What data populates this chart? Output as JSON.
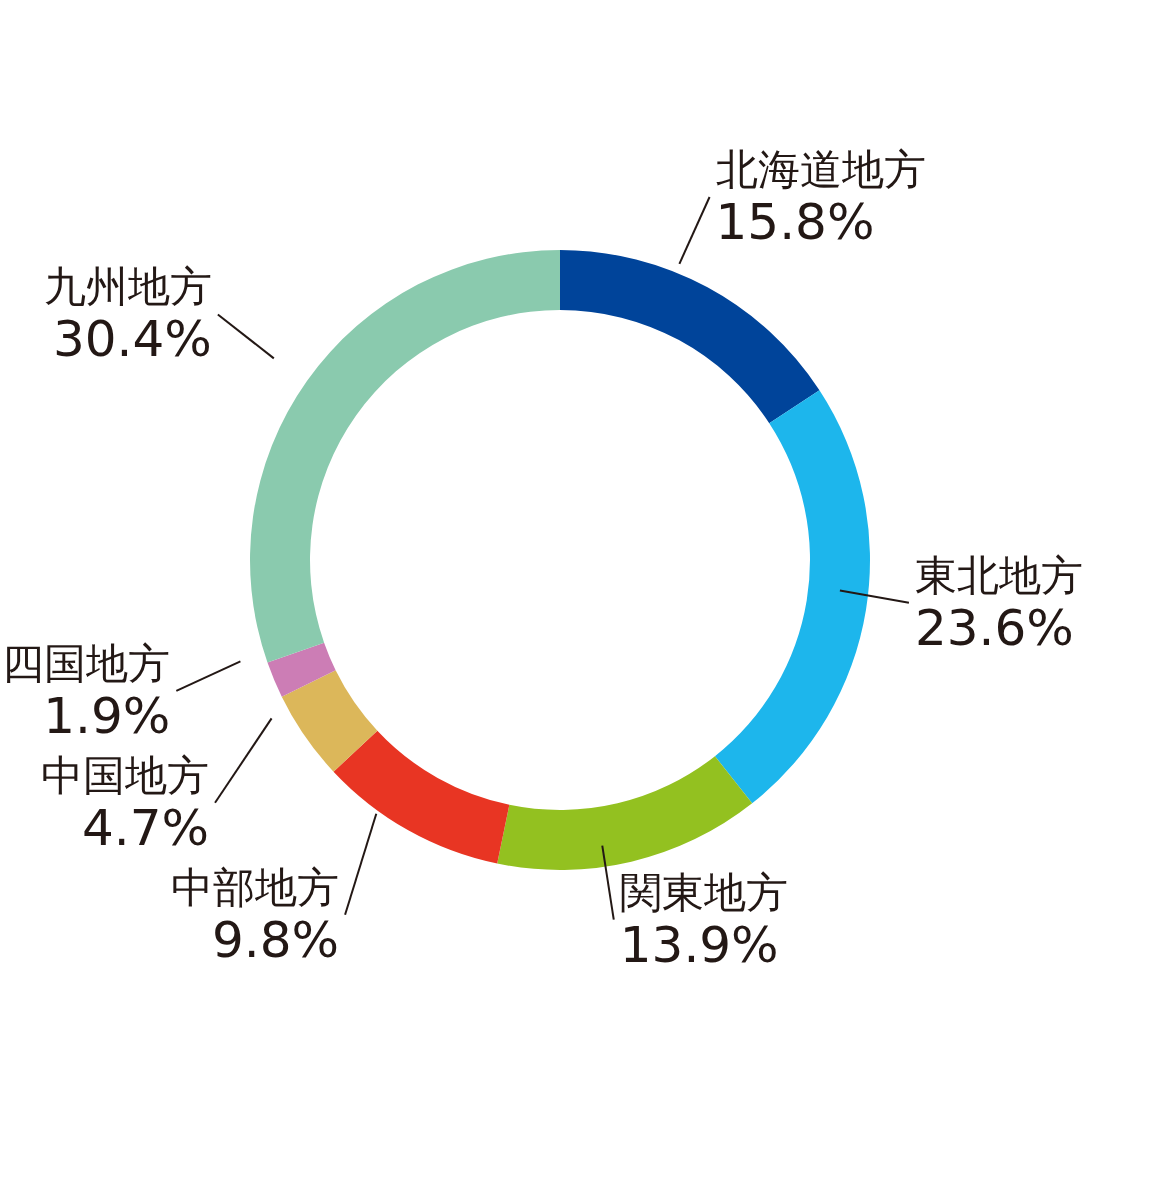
{
  "chart_data": {
    "type": "donut",
    "categories": [
      "北海道地方",
      "東北地方",
      "関東地方",
      "中部地方",
      "中国地方",
      "四国地方",
      "九州地方"
    ],
    "values": [
      15.8,
      23.6,
      13.9,
      9.8,
      4.7,
      1.9,
      30.4
    ],
    "value_labels": [
      "15.8%",
      "23.6%",
      "13.9%",
      "9.8%",
      "4.7%",
      "1.9%",
      "30.4%"
    ],
    "colors": [
      "#00449a",
      "#1db6ec",
      "#93c120",
      "#e83523",
      "#dcb75a",
      "#cc7db5",
      "#8acaae"
    ]
  }
}
